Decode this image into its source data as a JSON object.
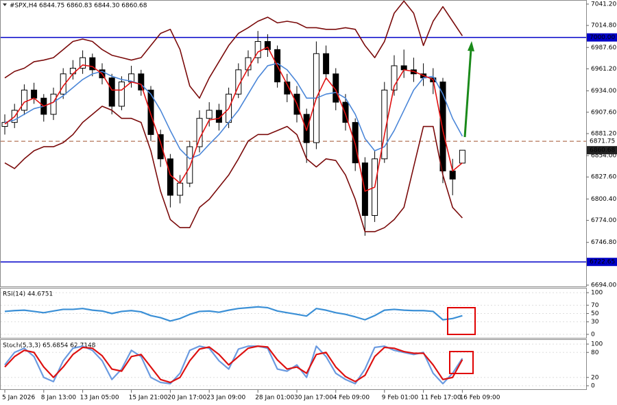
{
  "chart_data": [
    {
      "type": "candlestick",
      "title": "#SPX,H4  6844.75 6860.83 6844.30 6860.68",
      "categories": [
        "5 Jan 2026",
        null,
        null,
        null,
        "8 Jan 13:00",
        null,
        null,
        null,
        "13 Jan 05:00",
        null,
        null,
        null,
        null,
        "15 Jan 21:00",
        null,
        null,
        null,
        "20 Jan 17:00",
        null,
        null,
        null,
        "23 Jan 09:00",
        null,
        null,
        null,
        null,
        "28 Jan 01:00",
        null,
        null,
        null,
        "30 Jan 17:00",
        null,
        null,
        null,
        "4 Feb 09:00",
        null,
        null,
        null,
        null,
        "9 Feb 01:00",
        null,
        null,
        null,
        "11 Feb 17:00",
        null,
        null,
        null,
        "16 Feb 09:00"
      ],
      "open": [
        6890,
        6895,
        6910,
        6935,
        6925,
        6905,
        6930,
        6955,
        6962,
        6975,
        6960,
        6950,
        6915,
        6945,
        6955,
        6935,
        6880,
        6850,
        6805,
        6820,
        6865,
        6900,
        6910,
        6895,
        6930,
        6960,
        6975,
        6995,
        6985,
        6945,
        6930,
        6905,
        6870,
        6980,
        6955,
        6920,
        6895,
        6845,
        6780,
        6850,
        6935,
        6965,
        6960,
        6955,
        6950,
        6945,
        6835,
        6844.75
      ],
      "high": [
        6905,
        6918,
        6942,
        6944,
        6930,
        6938,
        6962,
        6972,
        6984,
        6980,
        6968,
        6955,
        6952,
        6965,
        6960,
        6940,
        6886,
        6856,
        6830,
        6872,
        6910,
        6920,
        6918,
        6938,
        6968,
        6984,
        7008,
        7004,
        6990,
        6955,
        6940,
        6912,
        6995,
        6990,
        6962,
        6930,
        6900,
        6852,
        6860,
        6945,
        6978,
        6985,
        6975,
        6968,
        6962,
        6950,
        6850,
        6860.83
      ],
      "low": [
        6880,
        6888,
        6904,
        6918,
        6896,
        6898,
        6924,
        6948,
        6955,
        6952,
        6942,
        6905,
        6910,
        6938,
        6928,
        6872,
        6840,
        6790,
        6795,
        6815,
        6858,
        6890,
        6885,
        6888,
        6925,
        6952,
        6968,
        6976,
        6938,
        6920,
        6895,
        6845,
        6862,
        6948,
        6910,
        6885,
        6835,
        6755,
        6772,
        6845,
        6928,
        6950,
        6945,
        6940,
        6930,
        6820,
        6805,
        6844.3
      ],
      "close": [
        6895,
        6910,
        6935,
        6925,
        6905,
        6930,
        6955,
        6962,
        6975,
        6960,
        6950,
        6915,
        6945,
        6955,
        6935,
        6880,
        6850,
        6805,
        6820,
        6865,
        6900,
        6910,
        6895,
        6930,
        6960,
        6975,
        6995,
        6985,
        6945,
        6930,
        6905,
        6870,
        6980,
        6955,
        6920,
        6895,
        6845,
        6780,
        6850,
        6935,
        6965,
        6960,
        6955,
        6950,
        6945,
        6835,
        6825,
        6860.68
      ],
      "bull_color": "#ffffff",
      "bear_color": "#000000",
      "wick_color": "#000000",
      "series": [
        {
          "color": "#7a0a0a",
          "values": [
            6950,
            6958,
            6962,
            6970,
            6972,
            6975,
            6985,
            6995,
            6998,
            6995,
            6985,
            6978,
            6975,
            6972,
            6975,
            6990,
            7005,
            7010,
            6985,
            6940,
            6925,
            6950,
            6970,
            6990,
            7005,
            7012,
            7020,
            7025,
            7018,
            7020,
            7018,
            7012,
            7012,
            7010,
            7010,
            7012,
            7010,
            6990,
            6975,
            6995,
            7030,
            7045,
            7030,
            6990,
            7020,
            7038,
            7020,
            7002
          ]
        },
        {
          "color": "#7a0a0a",
          "values": [
            6845,
            6838,
            6850,
            6860,
            6865,
            6865,
            6870,
            6880,
            6895,
            6905,
            6915,
            6910,
            6900,
            6900,
            6895,
            6860,
            6810,
            6775,
            6765,
            6765,
            6790,
            6800,
            6815,
            6830,
            6850,
            6872,
            6880,
            6880,
            6885,
            6890,
            6880,
            6850,
            6840,
            6850,
            6848,
            6830,
            6800,
            6760,
            6760,
            6765,
            6775,
            6790,
            6840,
            6890,
            6890,
            6830,
            6790,
            6777
          ]
        },
        {
          "color": "#4a86d8",
          "values": [
            6895,
            6898,
            6905,
            6912,
            6915,
            6920,
            6928,
            6938,
            6948,
            6955,
            6958,
            6952,
            6948,
            6946,
            6942,
            6930,
            6910,
            6885,
            6862,
            6850,
            6855,
            6868,
            6880,
            6895,
            6910,
            6930,
            6950,
            6965,
            6968,
            6960,
            6945,
            6925,
            6925,
            6930,
            6932,
            6925,
            6905,
            6875,
            6860,
            6865,
            6885,
            6910,
            6935,
            6950,
            6952,
            6930,
            6900,
            6878
          ]
        },
        {
          "color": "#e01010",
          "values": [
            6893,
            6902,
            6920,
            6925,
            6915,
            6920,
            6940,
            6955,
            6966,
            6964,
            6955,
            6935,
            6935,
            6945,
            6942,
            6905,
            6870,
            6830,
            6820,
            6840,
            6875,
            6898,
            6900,
            6912,
            6940,
            6962,
            6982,
            6988,
            6965,
            6942,
            6918,
            6885,
            6925,
            6950,
            6935,
            6905,
            6868,
            6810,
            6815,
            6880,
            6940,
            6960,
            6958,
            6953,
            6948,
            6885,
            6835,
            6845
          ]
        }
      ],
      "levels": [
        {
          "value": 7000,
          "label": "7000.00",
          "color": "#0000c8",
          "style": "solid"
        },
        {
          "value": 6722.65,
          "label": "6722.65",
          "color": "#0000c8",
          "style": "solid"
        },
        {
          "value": 6871.75,
          "label": "6871.75",
          "color": "#a0522d",
          "style": "dashed"
        }
      ],
      "last_price": {
        "value": 6860.68,
        "label": "6860.68"
      },
      "ylim": [
        6691.5,
        7045.4
      ],
      "yticks": [
        {
          "value": 7041.2,
          "label": "7041.20"
        },
        {
          "value": 7014.8,
          "label": "7014.80"
        },
        {
          "value": 6987.6,
          "label": "6987.60"
        },
        {
          "value": 6961.2,
          "label": "6961.20"
        },
        {
          "value": 6934,
          "label": "6934.00"
        },
        {
          "value": 6907.6,
          "label": "6907.60"
        },
        {
          "value": 6881.2,
          "label": "6881.20"
        },
        {
          "value": 6854,
          "label": "6854.00"
        },
        {
          "value": 6827.6,
          "label": "6827.60"
        },
        {
          "value": 6800.4,
          "label": "6800.40"
        },
        {
          "value": 6774,
          "label": "6774.00"
        },
        {
          "value": 6746.8,
          "label": "6746.80"
        },
        {
          "value": 6694,
          "label": "6694.00"
        }
      ]
    },
    {
      "type": "line",
      "title": "RSI(14) 44.6751",
      "series": [
        {
          "color": "#3a8fd6",
          "values": [
            55,
            57,
            58,
            55,
            52,
            56,
            60,
            60,
            62,
            58,
            56,
            50,
            55,
            57,
            54,
            45,
            40,
            32,
            38,
            48,
            55,
            56,
            53,
            58,
            62,
            64,
            66,
            64,
            56,
            52,
            48,
            44,
            62,
            58,
            52,
            48,
            42,
            35,
            45,
            58,
            60,
            58,
            57,
            57,
            55,
            35,
            38,
            44.6751
          ]
        }
      ],
      "ylim": [
        -10,
        110
      ],
      "yticks": [
        0,
        30,
        50,
        70,
        100
      ]
    },
    {
      "type": "line",
      "title": "Stoch(5,3,3) 65.6854 62.7148",
      "series": [
        {
          "color": "#6a9ae0",
          "values": [
            50,
            80,
            90,
            70,
            20,
            10,
            60,
            90,
            95,
            85,
            60,
            15,
            40,
            85,
            70,
            20,
            8,
            5,
            30,
            85,
            95,
            90,
            60,
            40,
            88,
            95,
            95,
            90,
            40,
            35,
            50,
            20,
            95,
            70,
            30,
            15,
            5,
            40,
            92,
            95,
            85,
            80,
            75,
            80,
            30,
            5,
            30,
            65.6854
          ]
        },
        {
          "color": "#dd1111",
          "values": [
            45,
            70,
            85,
            80,
            45,
            20,
            45,
            75,
            92,
            90,
            72,
            40,
            35,
            70,
            75,
            45,
            15,
            8,
            20,
            60,
            88,
            93,
            75,
            50,
            70,
            90,
            95,
            93,
            62,
            40,
            45,
            30,
            75,
            80,
            45,
            22,
            10,
            25,
            70,
            92,
            90,
            82,
            78,
            78,
            50,
            15,
            20,
            62.7148
          ]
        }
      ],
      "ylim": [
        -10,
        110
      ],
      "yticks": [
        0,
        20,
        80,
        100
      ]
    }
  ]
}
